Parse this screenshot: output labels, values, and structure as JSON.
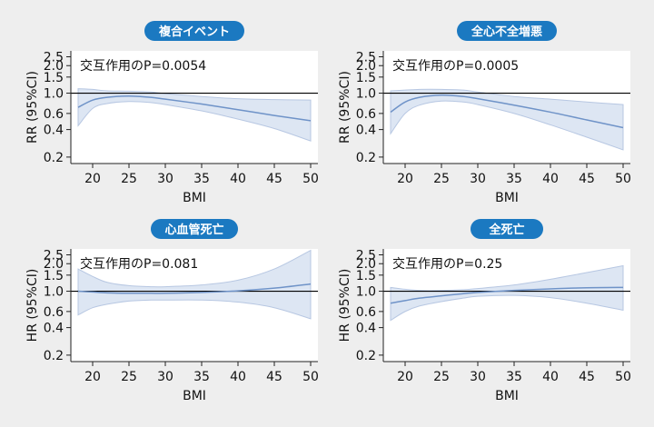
{
  "panel_colors": {
    "title_bg": "#1b79c1",
    "title_text": "#ffffff",
    "plot_bg": "#ffffff",
    "band_fill": "#dde6f3",
    "band_stroke": "#b7c7e2",
    "line": "#6f93c8",
    "reference": "#000000",
    "page_bg": "#eeeeee"
  },
  "chart_data": [
    {
      "type": "line",
      "title": "複合イベント",
      "annotation": "交互作用のP=0.0054",
      "xlabel": "BMI",
      "ylabel": "RR (95%CI)",
      "xlim": [
        17,
        51
      ],
      "ylim": [
        0.17,
        2.9
      ],
      "yscale": "log",
      "x_ticks": [
        20,
        25,
        30,
        35,
        40,
        45,
        50
      ],
      "y_ticks": [
        0.2,
        0.4,
        0.6,
        1.0,
        1.5,
        2.0,
        2.5
      ],
      "y_tick_labels": [
        "0.2",
        "0.4",
        "0.6",
        "1.0",
        "1.5",
        "2.0",
        "2.5"
      ],
      "reference_line": 1.0,
      "series": [
        {
          "x": [
            18,
            20,
            22,
            25,
            28,
            30,
            35,
            40,
            45,
            50
          ],
          "y": [
            0.7,
            0.84,
            0.9,
            0.93,
            0.9,
            0.86,
            0.76,
            0.66,
            0.57,
            0.5
          ],
          "lower": [
            0.44,
            0.68,
            0.77,
            0.81,
            0.79,
            0.75,
            0.64,
            0.52,
            0.41,
            0.3
          ],
          "upper": [
            1.12,
            1.1,
            1.06,
            1.05,
            1.03,
            0.99,
            0.92,
            0.87,
            0.85,
            0.84
          ]
        }
      ]
    },
    {
      "type": "line",
      "title": "全心不全増悪",
      "annotation": "交互作用のP=0.0005",
      "xlabel": "BMI",
      "ylabel": "RR (95%CI)",
      "xlim": [
        17,
        51
      ],
      "ylim": [
        0.17,
        2.9
      ],
      "yscale": "log",
      "x_ticks": [
        20,
        25,
        30,
        35,
        40,
        45,
        50
      ],
      "y_ticks": [
        0.2,
        0.4,
        0.6,
        1.0,
        1.5,
        2.0,
        2.5
      ],
      "y_tick_labels": [
        "0.2",
        "0.4",
        "0.6",
        "1.0",
        "1.5",
        "2.0",
        "2.5"
      ],
      "reference_line": 1.0,
      "series": [
        {
          "x": [
            18,
            20,
            22,
            25,
            28,
            30,
            35,
            40,
            45,
            50
          ],
          "y": [
            0.62,
            0.8,
            0.9,
            0.95,
            0.92,
            0.87,
            0.74,
            0.62,
            0.51,
            0.42
          ],
          "lower": [
            0.36,
            0.6,
            0.74,
            0.82,
            0.8,
            0.75,
            0.6,
            0.45,
            0.33,
            0.24
          ],
          "upper": [
            1.06,
            1.08,
            1.1,
            1.1,
            1.08,
            1.03,
            0.92,
            0.86,
            0.8,
            0.75
          ]
        }
      ]
    },
    {
      "type": "line",
      "title": "心血管死亡",
      "annotation": "交互作用のP=0.081",
      "xlabel": "BMI",
      "ylabel": "HR (95%CI)",
      "xlim": [
        17,
        51
      ],
      "ylim": [
        0.17,
        2.9
      ],
      "yscale": "log",
      "x_ticks": [
        20,
        25,
        30,
        35,
        40,
        45,
        50
      ],
      "y_ticks": [
        0.2,
        0.4,
        0.6,
        1.0,
        1.5,
        2.0,
        2.5
      ],
      "y_tick_labels": [
        "0.2",
        "0.4",
        "0.6",
        "1.0",
        "1.5",
        "2.0",
        "2.5"
      ],
      "reference_line": 1.0,
      "series": [
        {
          "x": [
            18,
            20,
            22,
            25,
            28,
            30,
            35,
            40,
            45,
            50
          ],
          "y": [
            1.0,
            0.98,
            0.96,
            0.95,
            0.95,
            0.95,
            0.97,
            1.01,
            1.08,
            1.2
          ],
          "lower": [
            0.55,
            0.66,
            0.72,
            0.78,
            0.8,
            0.8,
            0.8,
            0.76,
            0.66,
            0.5
          ],
          "upper": [
            1.75,
            1.45,
            1.25,
            1.15,
            1.12,
            1.12,
            1.17,
            1.32,
            1.75,
            2.8
          ]
        }
      ]
    },
    {
      "type": "line",
      "title": "全死亡",
      "annotation": "交互作用のP=0.25",
      "xlabel": "BMI",
      "ylabel": "HR (95%CI)",
      "xlim": [
        17,
        51
      ],
      "ylim": [
        0.17,
        2.9
      ],
      "yscale": "log",
      "x_ticks": [
        20,
        25,
        30,
        35,
        40,
        45,
        50
      ],
      "y_ticks": [
        0.2,
        0.4,
        0.6,
        1.0,
        1.5,
        2.0,
        2.5
      ],
      "y_tick_labels": [
        "0.2",
        "0.4",
        "0.6",
        "1.0",
        "1.5",
        "2.0",
        "2.5"
      ],
      "reference_line": 1.0,
      "series": [
        {
          "x": [
            18,
            20,
            22,
            25,
            28,
            30,
            35,
            40,
            45,
            50
          ],
          "y": [
            0.74,
            0.79,
            0.84,
            0.89,
            0.94,
            0.97,
            1.02,
            1.06,
            1.09,
            1.1
          ],
          "lower": [
            0.48,
            0.6,
            0.69,
            0.77,
            0.84,
            0.88,
            0.9,
            0.85,
            0.74,
            0.62
          ],
          "upper": [
            1.1,
            1.05,
            1.02,
            1.02,
            1.04,
            1.07,
            1.17,
            1.35,
            1.6,
            1.9
          ]
        }
      ]
    }
  ]
}
